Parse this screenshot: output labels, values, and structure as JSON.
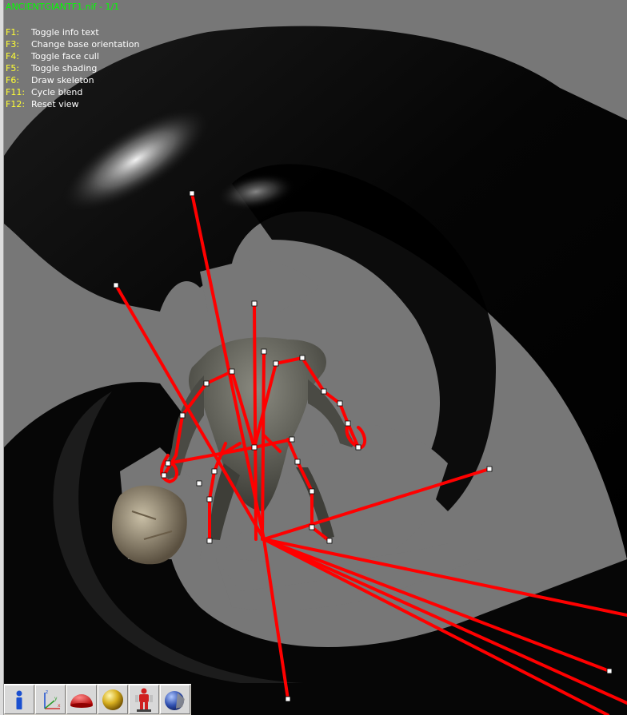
{
  "viewer": {
    "title": "ANCIENTGIANTF1.nif - 1/1",
    "info_items": [
      {
        "key": "F1:",
        "label": "Toggle info text"
      },
      {
        "key": "F3:",
        "label": "Change base orientation"
      },
      {
        "key": "F4:",
        "label": "Toggle face cull"
      },
      {
        "key": "F5:",
        "label": "Toggle shading"
      },
      {
        "key": "F6:",
        "label": "Draw skeleton"
      },
      {
        "key": "F11:",
        "label": "Cycle blend"
      },
      {
        "key": "F12:",
        "label": "Reset view"
      }
    ]
  },
  "toolbar": {
    "buttons": [
      {
        "name": "info-button",
        "icon": "info-icon"
      },
      {
        "name": "axes-button",
        "icon": "axes-icon"
      },
      {
        "name": "hemisphere-button",
        "icon": "hemisphere-icon"
      },
      {
        "name": "sphere-shading-button",
        "icon": "sphere-icon"
      },
      {
        "name": "skeleton-button",
        "icon": "skeleton-icon"
      },
      {
        "name": "texture-sphere-button",
        "icon": "texture-sphere-icon"
      }
    ]
  },
  "colors": {
    "title": "#00ff00",
    "key": "#ffff33",
    "text": "#ffffff",
    "bone": "#ff0000",
    "background": "#777777"
  }
}
